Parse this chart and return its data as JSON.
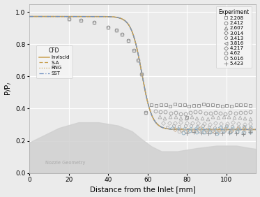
{
  "xlabel": "Distance from the Inlet [mm]",
  "ylabel": "P/P$_i$",
  "xlim": [
    0,
    115
  ],
  "ylim": [
    0,
    1.05
  ],
  "xticks": [
    0,
    20,
    40,
    60,
    80,
    100
  ],
  "yticks": [
    0.0,
    0.2,
    0.4,
    0.6,
    0.8,
    1.0
  ],
  "bg_color": "#ebebeb",
  "grid_color": "#ffffff",
  "cfd_colors": {
    "Inviscid": "#c8a050",
    "S-A": "#c8a050",
    "RNG": "#c8a050",
    "SST": "#7090c0"
  },
  "exp_series": [
    {
      "label": "2.208",
      "marker": "s",
      "color": "#888888",
      "ms": 3.5
    },
    {
      "label": "2.412",
      "marker": "o",
      "color": "#999999",
      "ms": 3.5
    },
    {
      "label": "2.607",
      "marker": "^",
      "color": "#aaaaaa",
      "ms": 3.5
    },
    {
      "label": "3.014",
      "marker": "D",
      "color": "#b8b8b8",
      "ms": 3.0
    },
    {
      "label": "3.413",
      "marker": "o",
      "color": "#aaaaaa",
      "ms": 3.0
    },
    {
      "label": "3.816",
      "marker": "<",
      "color": "#9abacc",
      "ms": 3.5
    },
    {
      "label": "4.217",
      "marker": "D",
      "color": "#c8aa88",
      "ms": 3.0
    },
    {
      "label": "4.62",
      "marker": "o",
      "color": "#b8b8b8",
      "ms": 3.5
    },
    {
      "label": "5.016",
      "marker": "o",
      "color": "#88aabb",
      "ms": 3.5
    },
    {
      "label": "5.423",
      "marker": "+",
      "color": "#888888",
      "ms": 4.5
    }
  ],
  "nozzle_geo_label": "Nozzle Geometry",
  "nozzle_geo_color": "#d0d0d0",
  "nozzle_geo_alpha": 0.85
}
